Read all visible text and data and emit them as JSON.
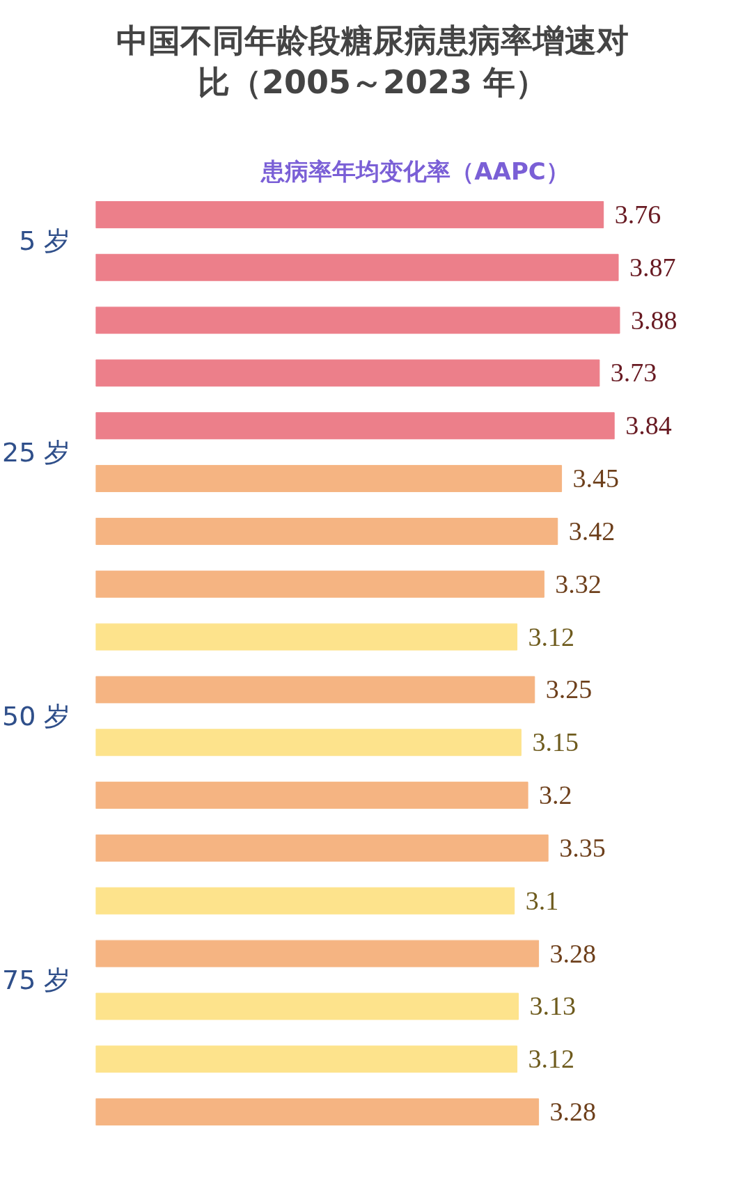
{
  "chart_data": {
    "type": "bar",
    "orientation": "horizontal",
    "title": "中国不同年龄段糖尿病患病率增速对比（2005～2023 年）",
    "xlabel": "患病率年均变化率（AAPC）",
    "categories": [
      null,
      null,
      null,
      null,
      null,
      null,
      null,
      null,
      null,
      null,
      null,
      null,
      null,
      null,
      null,
      null,
      null,
      null
    ],
    "values": [
      3.76,
      3.87,
      3.88,
      3.73,
      3.84,
      3.45,
      3.42,
      3.32,
      3.12,
      3.25,
      3.15,
      3.2,
      3.35,
      3.1,
      3.28,
      3.13,
      3.12,
      3.28
    ],
    "colors": [
      "#ec7f8a",
      "#ec7f8a",
      "#ec7f8a",
      "#ec7f8a",
      "#ec7f8a",
      "#f5b482",
      "#f5b482",
      "#f5b482",
      "#fde38c",
      "#f5b482",
      "#fde38c",
      "#f5b482",
      "#f5b482",
      "#fde38c",
      "#f5b482",
      "#fde38c",
      "#fde38c",
      "#f5b482"
    ],
    "data_labels": true,
    "annotations": [
      "5 岁",
      "25 岁",
      "50 岁",
      "75 岁"
    ],
    "grid": false
  }
}
